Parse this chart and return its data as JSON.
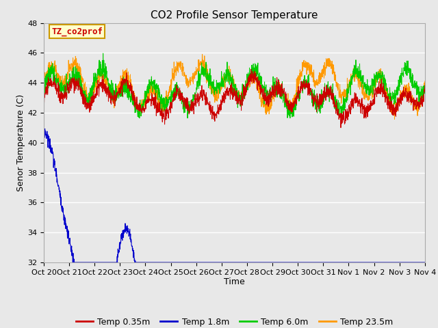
{
  "title": "CO2 Profile Sensor Temperature",
  "xlabel": "Time",
  "ylabel": "Senor Temperature (C)",
  "ylim": [
    32,
    48
  ],
  "yticks": [
    32,
    34,
    36,
    38,
    40,
    42,
    44,
    46,
    48
  ],
  "xtick_labels": [
    "Oct 20",
    "Oct 21",
    "Oct 22",
    "Oct 23",
    "Oct 24",
    "Oct 25",
    "Oct 26",
    "Oct 27",
    "Oct 28",
    "Oct 29",
    "Oct 30",
    "Oct 31",
    "Nov 1",
    "Nov 2",
    "Nov 3",
    "Nov 4"
  ],
  "legend_labels": [
    "Temp 0.35m",
    "Temp 1.8m",
    "Temp 6.0m",
    "Temp 23.5m"
  ],
  "line_colors": [
    "#cc0000",
    "#0000cc",
    "#00cc00",
    "#ff9900"
  ],
  "annotation_text": "TZ_co2prof",
  "annotation_color": "#cc0000",
  "annotation_bg": "#ffffcc",
  "annotation_border": "#cc9900",
  "background_color": "#e8e8e8",
  "grid_color": "#ffffff",
  "title_fontsize": 11,
  "axis_fontsize": 9,
  "tick_fontsize": 8,
  "legend_fontsize": 9
}
